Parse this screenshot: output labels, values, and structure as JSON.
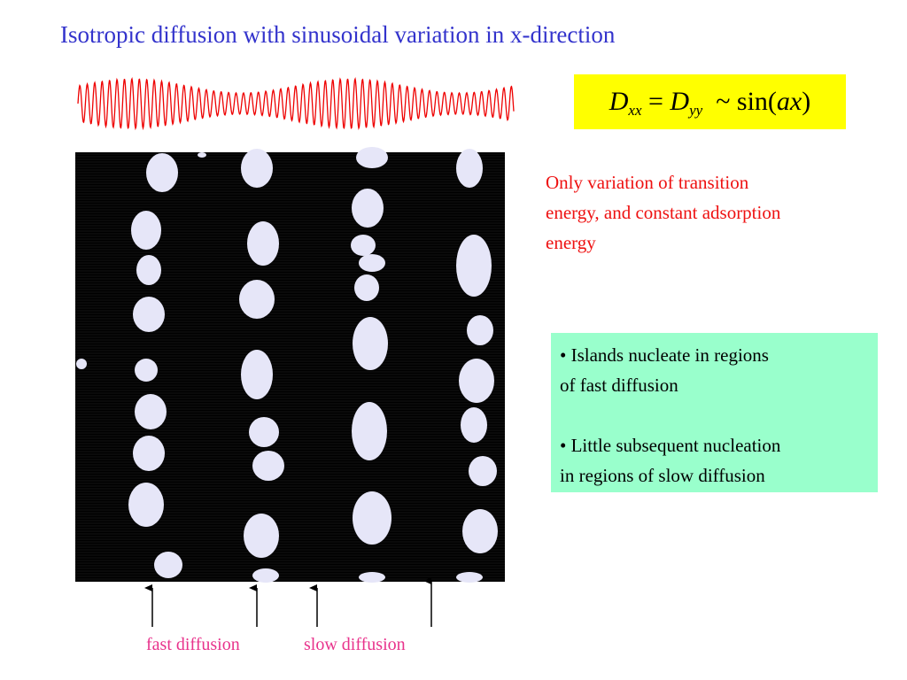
{
  "title": "Isotropic diffusion with sinusoidal variation in x-direction",
  "formula": {
    "d1": "D",
    "sub1": "xx",
    "eq": "=",
    "d2": "D",
    "sub2": "yy",
    "tilde": "~",
    "sin": "sin(",
    "arg": "ax",
    "close": ")"
  },
  "note": [
    "Only variation of transition",
    "energy, and constant adsorption",
    "energy"
  ],
  "bullets": [
    [
      "• Islands nucleate in regions",
      "of fast diffusion"
    ],
    [
      "• Little subsequent nucleation",
      "in regions of slow diffusion"
    ]
  ],
  "labels": {
    "fast": "fast diffusion",
    "slow": "slow diffusion"
  }
}
